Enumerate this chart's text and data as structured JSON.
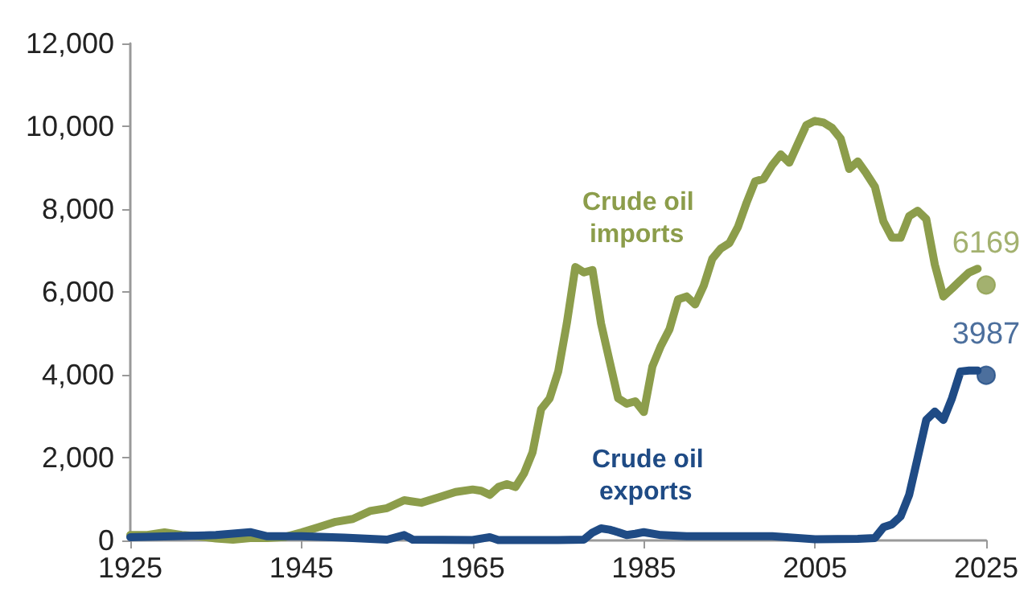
{
  "chart_data": {
    "type": "line",
    "xlim": [
      1925,
      2025
    ],
    "xticks": [
      1925,
      1945,
      1965,
      1985,
      2005,
      2025
    ],
    "ylim": [
      0,
      12000
    ],
    "yticks": [
      0,
      {
        "value": 2000,
        "label": "2,000"
      },
      {
        "value": 4000,
        "label": "4,000"
      },
      {
        "value": 6000,
        "label": "6,000"
      },
      {
        "value": 8000,
        "label": "8,000"
      },
      {
        "value": 10000,
        "label": "10,000"
      },
      {
        "value": 12000,
        "label": "12,000"
      }
    ],
    "grid": false,
    "legend": false,
    "marker": "none",
    "series": [
      {
        "name": "Crude oil imports",
        "color": "#8c9d4b",
        "x": [
          1925,
          1927,
          1929,
          1931,
          1933,
          1935,
          1937,
          1939,
          1941,
          1943,
          1945,
          1947,
          1949,
          1951,
          1953,
          1955,
          1957,
          1959,
          1961,
          1963,
          1965,
          1966,
          1967,
          1968,
          1969,
          1970,
          1971,
          1972,
          1973,
          1974,
          1975,
          1976,
          1977,
          1978,
          1979,
          1980,
          1981,
          1982,
          1983,
          1984,
          1985,
          1986,
          1987,
          1988,
          1989,
          1990,
          1991,
          1992,
          1993,
          1994,
          1995,
          1996,
          1997,
          1998,
          1999,
          2000,
          2001,
          2002,
          2003,
          2004,
          2005,
          2006,
          2007,
          2008,
          2009,
          2010,
          2011,
          2012,
          2013,
          2014,
          2015,
          2016,
          2017,
          2018,
          2019,
          2020,
          2021,
          2022,
          2023,
          2024
        ],
        "values": [
          130,
          130,
          195,
          130,
          100,
          50,
          20,
          60,
          60,
          80,
          195,
          320,
          450,
          520,
          710,
          780,
          970,
          910,
          1040,
          1170,
          1230,
          1200,
          1100,
          1290,
          1360,
          1290,
          1620,
          2130,
          3170,
          3430,
          4080,
          5240,
          6600,
          6470,
          6530,
          5240,
          4330,
          3430,
          3300,
          3360,
          3100,
          4200,
          4700,
          5100,
          5820,
          5890,
          5700,
          6150,
          6800,
          7050,
          7180,
          7570,
          8150,
          8670,
          8730,
          9060,
          9320,
          9120,
          9580,
          10030,
          10130,
          10090,
          9960,
          9700,
          8970,
          9150,
          8860,
          8540,
          7700,
          7310,
          7310,
          7830,
          7960,
          7760,
          6660,
          5890,
          6080,
          6280,
          6470,
          6560
        ]
      },
      {
        "name": "Crude oil exports",
        "color": "#1f4b85",
        "x": [
          1925,
          1930,
          1935,
          1939,
          1941,
          1945,
          1950,
          1955,
          1957,
          1958,
          1965,
          1967,
          1968,
          1975,
          1978,
          1979,
          1980,
          1981,
          1982,
          1983,
          1984,
          1985,
          1987,
          1990,
          1995,
          2000,
          2005,
          2010,
          2012,
          2013,
          2014,
          2015,
          2016,
          2017,
          2018,
          2019,
          2020,
          2021,
          2022,
          2023,
          2024
        ],
        "values": [
          80,
          100,
          130,
          200,
          100,
          100,
          70,
          20,
          130,
          20,
          10,
          80,
          10,
          10,
          20,
          190,
          290,
          260,
          200,
          130,
          160,
          200,
          130,
          100,
          100,
          100,
          30,
          40,
          60,
          320,
          390,
          580,
          1100,
          2000,
          2910,
          3110,
          2910,
          3430,
          4080,
          4100,
          4100
        ]
      },
      {
        "type": "scatter",
        "marker": "circle",
        "color": "#8c9d4b",
        "x": [
          2025
        ],
        "values": [
          6169
        ],
        "value_labels": [
          "6169"
        ]
      },
      {
        "type": "scatter",
        "marker": "circle",
        "color": "#1f4b85",
        "x": [
          2025
        ],
        "values": [
          3987
        ],
        "value_labels": [
          "3987"
        ]
      }
    ]
  }
}
